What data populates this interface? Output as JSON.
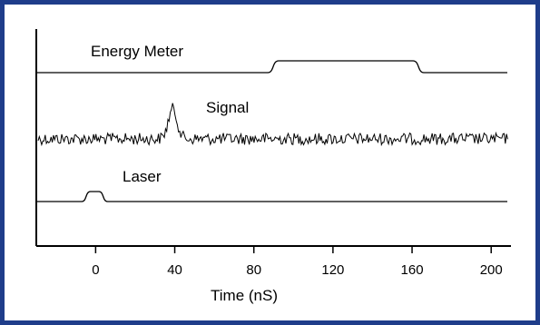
{
  "chart_data": {
    "type": "line",
    "title": "",
    "xlabel": "Time (nS)",
    "ylabel": "",
    "xlim": [
      -30,
      210
    ],
    "xticks": [
      0,
      40,
      80,
      120,
      160,
      200
    ],
    "grid": false,
    "colors": {
      "frame": "#1f3d8a",
      "trace": "#000000",
      "axis": "#000000"
    },
    "series": [
      {
        "name": "Energy Meter",
        "baseline": 0.0,
        "pulses": [
          {
            "start": 87,
            "end": 166,
            "height": 1.0
          }
        ]
      },
      {
        "name": "Signal",
        "noise": true,
        "peak": {
          "center": 39,
          "height": 3.0
        }
      },
      {
        "name": "Laser",
        "baseline": 0.0,
        "pulses": [
          {
            "start": -7,
            "end": 6,
            "height": 1.0
          }
        ]
      }
    ]
  }
}
